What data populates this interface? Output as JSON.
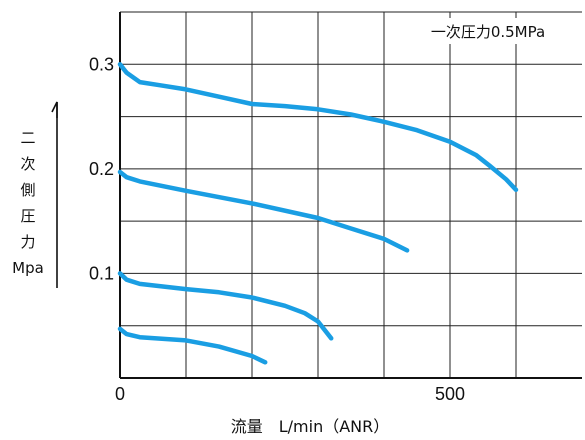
{
  "chart_data": {
    "type": "line",
    "annotation": "一次圧力0.5MPa",
    "xlabel": "流量　L/min（ANR）",
    "ylabel": [
      "二",
      "次",
      "側",
      "圧",
      "力",
      "Mpa"
    ],
    "xlim": [
      0,
      700
    ],
    "ylim": [
      0,
      0.35
    ],
    "xticks": [
      {
        "value": 0,
        "label": "0"
      },
      {
        "value": 500,
        "label": "500"
      }
    ],
    "yticks": [
      {
        "value": 0.1,
        "label": "0.1"
      },
      {
        "value": 0.2,
        "label": "0.2"
      },
      {
        "value": 0.3,
        "label": "0.3"
      }
    ],
    "grid": true,
    "color": "#1a9ee3",
    "series": [
      {
        "x": [
          0,
          10,
          30,
          60,
          100,
          150,
          200,
          250,
          300,
          350,
          400,
          450,
          500,
          540,
          560,
          585,
          600
        ],
        "y": [
          0.3,
          0.292,
          0.283,
          0.28,
          0.276,
          0.269,
          0.262,
          0.26,
          0.257,
          0.252,
          0.245,
          0.237,
          0.226,
          0.213,
          0.203,
          0.19,
          0.18
        ]
      },
      {
        "x": [
          0,
          10,
          30,
          100,
          200,
          300,
          350,
          400,
          435
        ],
        "y": [
          0.197,
          0.192,
          0.188,
          0.179,
          0.167,
          0.153,
          0.143,
          0.133,
          0.122
        ]
      },
      {
        "x": [
          0,
          10,
          30,
          100,
          150,
          200,
          250,
          280,
          300,
          320
        ],
        "y": [
          0.1,
          0.094,
          0.09,
          0.085,
          0.082,
          0.077,
          0.069,
          0.062,
          0.054,
          0.038
        ]
      },
      {
        "x": [
          0,
          10,
          30,
          100,
          150,
          200,
          220
        ],
        "y": [
          0.047,
          0.042,
          0.039,
          0.036,
          0.03,
          0.021,
          0.015
        ]
      }
    ]
  }
}
